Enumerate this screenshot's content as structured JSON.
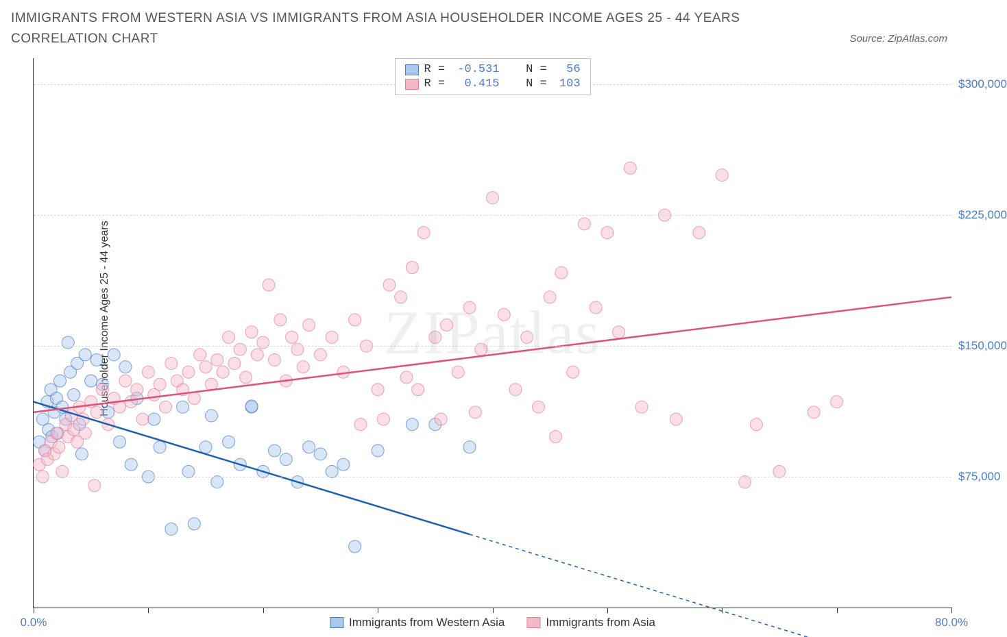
{
  "title": "IMMIGRANTS FROM WESTERN ASIA VS IMMIGRANTS FROM ASIA HOUSEHOLDER INCOME AGES 25 - 44 YEARS CORRELATION CHART",
  "source": "Source: ZipAtlas.com",
  "ylabel": "Householder Income Ages 25 - 44 years",
  "watermark": "ZIPatlas",
  "chart": {
    "type": "scatter-correlation",
    "background_color": "#ffffff",
    "grid_color": "#d8d8d8",
    "axis_color": "#333333",
    "tick_label_color": "#4a7bc8",
    "xlim": [
      0,
      80
    ],
    "ylim": [
      0,
      315000
    ],
    "xticks": [
      0,
      10,
      20,
      30,
      40,
      50,
      60,
      70,
      80
    ],
    "xtick_labels": {
      "0": "0.0%",
      "80": "80.0%"
    },
    "yticks": [
      75000,
      150000,
      225000,
      300000
    ],
    "ytick_labels": [
      "$75,000",
      "$150,000",
      "$225,000",
      "$300,000"
    ],
    "marker_radius": 9,
    "marker_opacity": 0.45,
    "line_width": 2.5
  },
  "series": [
    {
      "name": "Immigrants from Western Asia",
      "color_fill": "#a8c8f0",
      "color_stroke": "#4a7bc8",
      "line_color": "#1f5fb0",
      "R": "-0.531",
      "N": "56",
      "regression": {
        "x1": 0,
        "y1": 118000,
        "x2": 38,
        "y2": 42000,
        "x2_dash": 72,
        "y2_dash": -26000
      },
      "points": [
        [
          0.5,
          95000
        ],
        [
          0.8,
          108000
        ],
        [
          1,
          90000
        ],
        [
          1.2,
          118000
        ],
        [
          1.3,
          102000
        ],
        [
          1.5,
          125000
        ],
        [
          1.6,
          98000
        ],
        [
          1.8,
          112000
        ],
        [
          2,
          120000
        ],
        [
          2.1,
          100000
        ],
        [
          2.3,
          130000
        ],
        [
          2.5,
          115000
        ],
        [
          2.8,
          108000
        ],
        [
          3,
          152000
        ],
        [
          3.2,
          135000
        ],
        [
          3.5,
          122000
        ],
        [
          3.8,
          140000
        ],
        [
          4,
          105000
        ],
        [
          4.2,
          88000
        ],
        [
          4.5,
          145000
        ],
        [
          5,
          130000
        ],
        [
          5.5,
          142000
        ],
        [
          6,
          128000
        ],
        [
          6.5,
          112000
        ],
        [
          7,
          145000
        ],
        [
          7.5,
          95000
        ],
        [
          8,
          138000
        ],
        [
          8.5,
          82000
        ],
        [
          9,
          120000
        ],
        [
          10,
          75000
        ],
        [
          10.5,
          108000
        ],
        [
          11,
          92000
        ],
        [
          12,
          45000
        ],
        [
          13,
          115000
        ],
        [
          13.5,
          78000
        ],
        [
          14,
          48000
        ],
        [
          15,
          92000
        ],
        [
          15.5,
          110000
        ],
        [
          16,
          72000
        ],
        [
          17,
          95000
        ],
        [
          18,
          82000
        ],
        [
          19,
          115000
        ],
        [
          19,
          115500
        ],
        [
          20,
          78000
        ],
        [
          21,
          90000
        ],
        [
          22,
          85000
        ],
        [
          23,
          72000
        ],
        [
          24,
          92000
        ],
        [
          25,
          88000
        ],
        [
          26,
          78000
        ],
        [
          27,
          82000
        ],
        [
          28,
          35000
        ],
        [
          30,
          90000
        ],
        [
          33,
          105000
        ],
        [
          35,
          105000
        ],
        [
          38,
          92000
        ]
      ]
    },
    {
      "name": "Immigrants from Asia",
      "color_fill": "#f5b8c8",
      "color_stroke": "#e87a9a",
      "line_color": "#e0527a",
      "R": "0.415",
      "N": "103",
      "regression": {
        "x1": 0,
        "y1": 112000,
        "x2": 80,
        "y2": 178000
      },
      "points": [
        [
          0.5,
          82000
        ],
        [
          0.8,
          75000
        ],
        [
          1,
          90000
        ],
        [
          1.2,
          85000
        ],
        [
          1.5,
          95000
        ],
        [
          1.8,
          88000
        ],
        [
          2,
          100000
        ],
        [
          2.2,
          92000
        ],
        [
          2.5,
          78000
        ],
        [
          2.8,
          105000
        ],
        [
          3,
          98000
        ],
        [
          3.3,
          110000
        ],
        [
          3.5,
          102000
        ],
        [
          3.8,
          95000
        ],
        [
          4,
          115000
        ],
        [
          4.3,
          108000
        ],
        [
          4.5,
          100000
        ],
        [
          5,
          118000
        ],
        [
          5.3,
          70000
        ],
        [
          5.5,
          112000
        ],
        [
          6,
          125000
        ],
        [
          6.5,
          105000
        ],
        [
          7,
          120000
        ],
        [
          7.5,
          115000
        ],
        [
          8,
          130000
        ],
        [
          8.5,
          118000
        ],
        [
          9,
          125000
        ],
        [
          9.5,
          108000
        ],
        [
          10,
          135000
        ],
        [
          10.5,
          122000
        ],
        [
          11,
          128000
        ],
        [
          11.5,
          115000
        ],
        [
          12,
          140000
        ],
        [
          12.5,
          130000
        ],
        [
          13,
          125000
        ],
        [
          13.5,
          135000
        ],
        [
          14,
          120000
        ],
        [
          14.5,
          145000
        ],
        [
          15,
          138000
        ],
        [
          15.5,
          128000
        ],
        [
          16,
          142000
        ],
        [
          16.5,
          135000
        ],
        [
          17,
          155000
        ],
        [
          17.5,
          140000
        ],
        [
          18,
          148000
        ],
        [
          18.5,
          132000
        ],
        [
          19,
          158000
        ],
        [
          19.5,
          145000
        ],
        [
          20,
          152000
        ],
        [
          20.5,
          185000
        ],
        [
          21,
          142000
        ],
        [
          21.5,
          165000
        ],
        [
          22,
          130000
        ],
        [
          22.5,
          155000
        ],
        [
          23,
          148000
        ],
        [
          23.5,
          138000
        ],
        [
          24,
          162000
        ],
        [
          25,
          145000
        ],
        [
          26,
          155000
        ],
        [
          27,
          135000
        ],
        [
          28,
          165000
        ],
        [
          28.5,
          105000
        ],
        [
          29,
          150000
        ],
        [
          30,
          125000
        ],
        [
          30.5,
          108000
        ],
        [
          31,
          185000
        ],
        [
          32,
          178000
        ],
        [
          32.5,
          132000
        ],
        [
          33,
          195000
        ],
        [
          33.5,
          125000
        ],
        [
          34,
          215000
        ],
        [
          35,
          155000
        ],
        [
          35.5,
          108000
        ],
        [
          36,
          162000
        ],
        [
          37,
          135000
        ],
        [
          38,
          172000
        ],
        [
          38.5,
          112000
        ],
        [
          39,
          148000
        ],
        [
          40,
          235000
        ],
        [
          41,
          168000
        ],
        [
          42,
          125000
        ],
        [
          43,
          155000
        ],
        [
          44,
          115000
        ],
        [
          45,
          178000
        ],
        [
          45.5,
          98000
        ],
        [
          46,
          192000
        ],
        [
          47,
          135000
        ],
        [
          48,
          220000
        ],
        [
          49,
          172000
        ],
        [
          50,
          215000
        ],
        [
          51,
          158000
        ],
        [
          52,
          252000
        ],
        [
          53,
          115000
        ],
        [
          55,
          225000
        ],
        [
          56,
          108000
        ],
        [
          58,
          215000
        ],
        [
          60,
          248000
        ],
        [
          62,
          72000
        ],
        [
          63,
          105000
        ],
        [
          65,
          78000
        ],
        [
          68,
          112000
        ],
        [
          70,
          118000
        ]
      ]
    }
  ],
  "legend_top": {
    "rows": [
      {
        "swatch_fill": "#a8c8f0",
        "swatch_stroke": "#4a7bc8",
        "r_label": "R = ",
        "r_val": "-0.531",
        "n_label": "   N = ",
        "n_val": " 56"
      },
      {
        "swatch_fill": "#f5b8c8",
        "swatch_stroke": "#e87a9a",
        "r_label": "R = ",
        "r_val": " 0.415",
        "n_label": "   N = ",
        "n_val": "103"
      }
    ]
  },
  "legend_bottom": [
    {
      "swatch_fill": "#a8c8f0",
      "swatch_stroke": "#4a7bc8",
      "label": "Immigrants from Western Asia"
    },
    {
      "swatch_fill": "#f5b8c8",
      "swatch_stroke": "#e87a9a",
      "label": "Immigrants from Asia"
    }
  ]
}
